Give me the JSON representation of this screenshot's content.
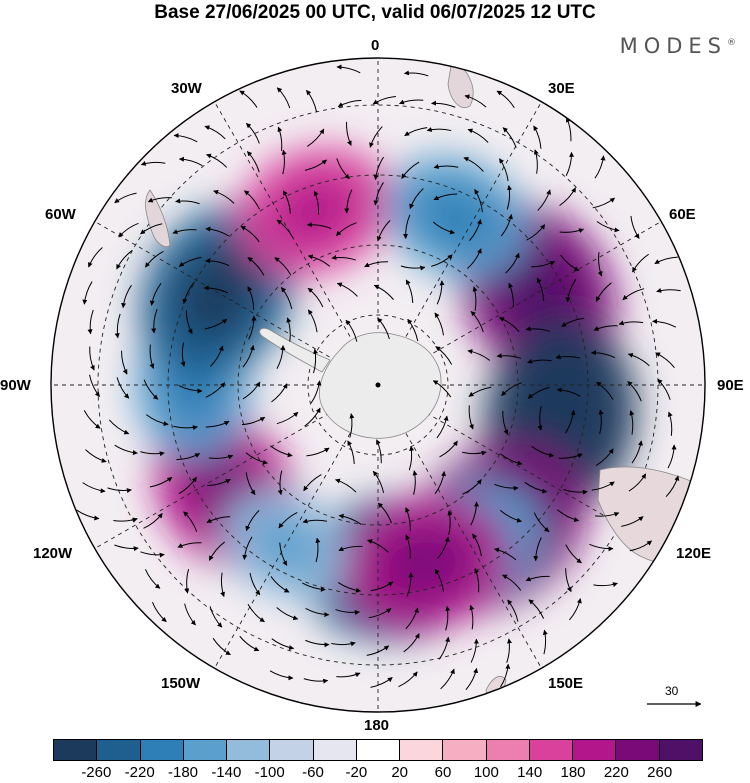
{
  "header": {
    "title": "Base 27/06/2025 00 UTC, valid 06/07/2025 12 UTC",
    "brand": "MODES",
    "brand_mark": "®"
  },
  "map": {
    "projection": "south polar stereographic",
    "longitude_labels": {
      "0": "0",
      "30E": "30E",
      "60E": "60E",
      "90E": "90E",
      "120E": "120E",
      "150E": "150E",
      "180": "180",
      "150W": "150W",
      "120W": "120W",
      "90W": "90W",
      "60W": "60W",
      "30W": "30W"
    },
    "anomaly_centers": [
      {
        "lon": 60,
        "sign": "positive",
        "magnitude": 240
      },
      {
        "lon": 100,
        "sign": "negative",
        "magnitude": 260
      },
      {
        "lon": 140,
        "sign": "positive",
        "magnitude": 260
      },
      {
        "lon": 175,
        "sign": "negative",
        "magnitude": 240
      },
      {
        "lon": -125,
        "sign": "positive",
        "magnitude": 200
      },
      {
        "lon": -90,
        "sign": "negative",
        "magnitude": 160
      },
      {
        "lon": -60,
        "sign": "negative",
        "magnitude": 240
      },
      {
        "lon": -20,
        "sign": "positive",
        "magnitude": 180
      },
      {
        "lon": 25,
        "sign": "negative",
        "magnitude": 160
      },
      {
        "lon": 150,
        "sign": "negative",
        "magnitude": 160
      },
      {
        "lon": -150,
        "sign": "negative",
        "magnitude": 120
      },
      {
        "lon": 165,
        "sign": "positive",
        "magnitude": 200
      }
    ]
  },
  "reference_vector": {
    "label": "30"
  },
  "colorbar": {
    "tick_labels": [
      "-260",
      "-220",
      "-180",
      "-140",
      "-100",
      "-60",
      "-20",
      "20",
      "60",
      "100",
      "140",
      "180",
      "220",
      "260"
    ],
    "colors": [
      "#1b3a5c",
      "#1f5f8f",
      "#2e7fb8",
      "#5b9fcc",
      "#93bcdc",
      "#c3d2e6",
      "#e6e6f0",
      "#ffffff",
      "#fbd6dc",
      "#f5aec2",
      "#ec7fb0",
      "#d9419d",
      "#b2168a",
      "#7a0a78",
      "#4f1068"
    ]
  }
}
